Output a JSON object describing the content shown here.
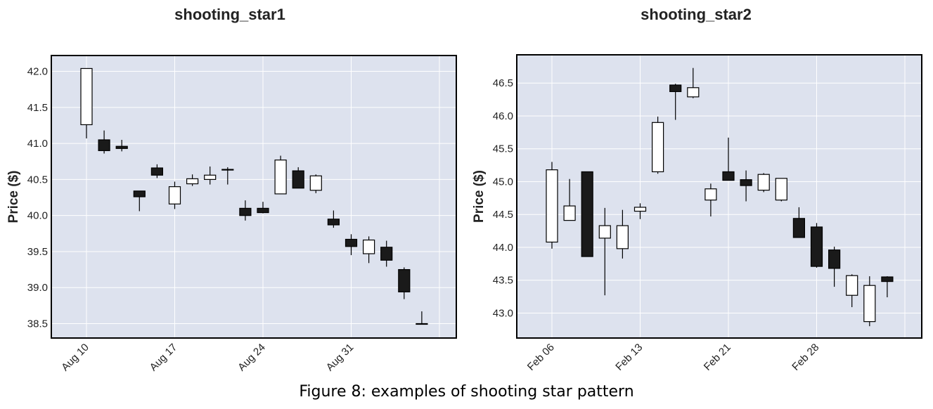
{
  "figure_caption": "Figure 8: examples of shooting star pattern",
  "colors": {
    "background": "#dde2ee",
    "grid": "#ffffff",
    "bullish": "#ffffff",
    "bearish": "#1a1a1a",
    "edge": "#000000"
  },
  "chart_data": [
    {
      "type": "candlestick",
      "title": "shooting_star1",
      "xlabel": "",
      "ylabel": "Price ($)",
      "ylim": [
        38.3,
        42.22
      ],
      "yticks": [
        "38.5",
        "39.0",
        "39.5",
        "40.0",
        "40.5",
        "41.0",
        "41.5",
        "42.0"
      ],
      "grid": true,
      "xtick_labels": [
        {
          "label": "Aug 10",
          "index": 0
        },
        {
          "label": "Aug 17",
          "index": 5
        },
        {
          "label": "Aug 24",
          "index": 10
        },
        {
          "label": "Aug 31",
          "index": 15
        },
        {
          "label": "",
          "index": 20
        }
      ],
      "candles": [
        {
          "open": 41.26,
          "high": 42.04,
          "low": 41.07,
          "close": 42.04
        },
        {
          "open": 41.05,
          "high": 41.18,
          "low": 40.86,
          "close": 40.9
        },
        {
          "open": 40.96,
          "high": 41.05,
          "low": 40.89,
          "close": 40.93
        },
        {
          "open": 40.34,
          "high": 40.34,
          "low": 40.06,
          "close": 40.26
        },
        {
          "open": 40.66,
          "high": 40.71,
          "low": 40.52,
          "close": 40.56
        },
        {
          "open": 40.16,
          "high": 40.47,
          "low": 40.09,
          "close": 40.4
        },
        {
          "open": 40.44,
          "high": 40.57,
          "low": 40.41,
          "close": 40.51
        },
        {
          "open": 40.5,
          "high": 40.68,
          "low": 40.43,
          "close": 40.56
        },
        {
          "open": 40.64,
          "high": 40.67,
          "low": 40.43,
          "close": 40.64
        },
        {
          "open": 40.1,
          "high": 40.21,
          "low": 39.93,
          "close": 40.0
        },
        {
          "open": 40.1,
          "high": 40.19,
          "low": 40.03,
          "close": 40.04
        },
        {
          "open": 40.3,
          "high": 40.83,
          "low": 40.3,
          "close": 40.77
        },
        {
          "open": 40.62,
          "high": 40.67,
          "low": 40.38,
          "close": 40.38
        },
        {
          "open": 40.35,
          "high": 40.57,
          "low": 40.31,
          "close": 40.55
        },
        {
          "open": 39.95,
          "high": 40.07,
          "low": 39.83,
          "close": 39.87
        },
        {
          "open": 39.67,
          "high": 39.74,
          "low": 39.45,
          "close": 39.57
        },
        {
          "open": 39.47,
          "high": 39.71,
          "low": 39.34,
          "close": 39.66
        },
        {
          "open": 39.56,
          "high": 39.65,
          "low": 39.29,
          "close": 39.38
        },
        {
          "open": 39.25,
          "high": 39.28,
          "low": 38.84,
          "close": 38.94
        },
        {
          "open": 38.5,
          "high": 38.67,
          "low": 38.49,
          "close": 38.5
        }
      ]
    },
    {
      "type": "candlestick",
      "title": "shooting_star2",
      "xlabel": "",
      "ylabel": "Price ($)",
      "ylim": [
        42.62,
        46.93
      ],
      "yticks": [
        "43.0",
        "43.5",
        "44.0",
        "44.5",
        "45.0",
        "45.5",
        "46.0",
        "46.5"
      ],
      "grid": true,
      "xtick_labels": [
        {
          "label": "Feb 06",
          "index": 0
        },
        {
          "label": "Feb 13",
          "index": 5
        },
        {
          "label": "Feb 21",
          "index": 10
        },
        {
          "label": "Feb 28",
          "index": 15
        },
        {
          "label": "",
          "index": 20
        }
      ],
      "candles": [
        {
          "open": 44.08,
          "high": 45.3,
          "low": 43.98,
          "close": 45.18
        },
        {
          "open": 44.41,
          "high": 45.04,
          "low": 44.41,
          "close": 44.63
        },
        {
          "open": 45.15,
          "high": 45.15,
          "low": 43.86,
          "close": 43.86
        },
        {
          "open": 44.14,
          "high": 44.6,
          "low": 43.27,
          "close": 44.33
        },
        {
          "open": 43.98,
          "high": 44.57,
          "low": 43.83,
          "close": 44.33
        },
        {
          "open": 44.55,
          "high": 44.67,
          "low": 44.43,
          "close": 44.61
        },
        {
          "open": 45.15,
          "high": 45.99,
          "low": 45.12,
          "close": 45.9
        },
        {
          "open": 46.47,
          "high": 46.49,
          "low": 45.94,
          "close": 46.37
        },
        {
          "open": 46.29,
          "high": 46.73,
          "low": 46.27,
          "close": 46.43
        },
        {
          "open": 44.72,
          "high": 44.97,
          "low": 44.47,
          "close": 44.89
        },
        {
          "open": 45.15,
          "high": 45.67,
          "low": 45.02,
          "close": 45.02
        },
        {
          "open": 45.03,
          "high": 45.17,
          "low": 44.7,
          "close": 44.94
        },
        {
          "open": 44.87,
          "high": 45.13,
          "low": 44.84,
          "close": 45.11
        },
        {
          "open": 44.72,
          "high": 45.05,
          "low": 44.7,
          "close": 45.05
        },
        {
          "open": 44.44,
          "high": 44.61,
          "low": 44.15,
          "close": 44.15
        },
        {
          "open": 44.31,
          "high": 44.37,
          "low": 43.69,
          "close": 43.71
        },
        {
          "open": 43.96,
          "high": 44.01,
          "low": 43.4,
          "close": 43.68
        },
        {
          "open": 43.27,
          "high": 43.59,
          "low": 43.09,
          "close": 43.57
        },
        {
          "open": 42.87,
          "high": 43.56,
          "low": 42.8,
          "close": 43.42
        },
        {
          "open": 43.55,
          "high": 43.56,
          "low": 43.24,
          "close": 43.48
        }
      ]
    }
  ]
}
